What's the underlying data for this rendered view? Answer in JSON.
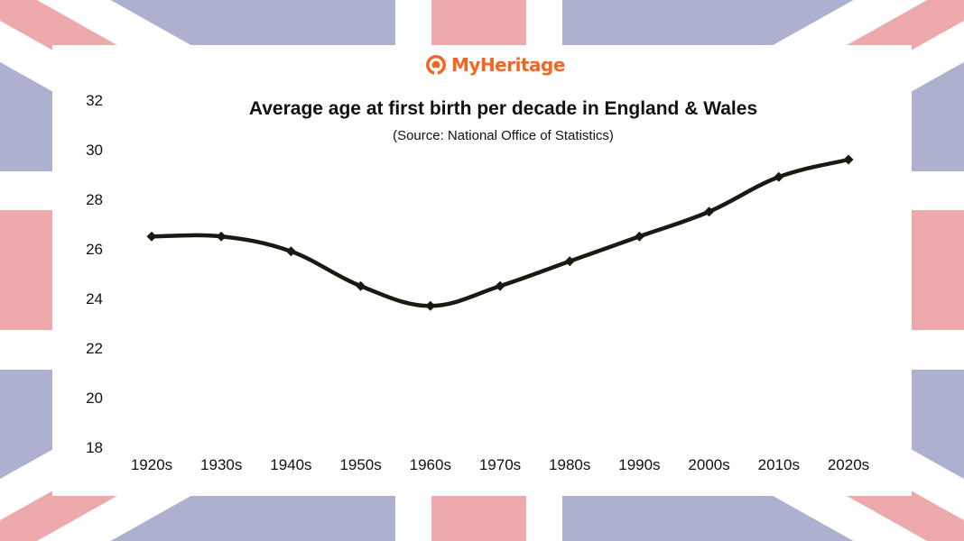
{
  "brand": {
    "name": "MyHeritage",
    "color": "#f26522"
  },
  "flag": {
    "blue": "#aeb0cf",
    "red": "#eda9ac",
    "white": "#ffffff"
  },
  "chart_data": {
    "type": "line",
    "title": "Average age at first birth per decade in England & Wales",
    "subtitle": "(Source: National Office of Statistics)",
    "categories": [
      "1920s",
      "1930s",
      "1940s",
      "1950s",
      "1960s",
      "1970s",
      "1980s",
      "1990s",
      "2000s",
      "2010s",
      "2020s"
    ],
    "values": [
      26.5,
      26.5,
      25.9,
      24.5,
      23.7,
      24.5,
      25.5,
      26.5,
      27.5,
      28.9,
      29.6
    ],
    "ylim": [
      18,
      32
    ],
    "yticks": [
      18,
      20,
      22,
      24,
      26,
      28,
      30,
      32
    ],
    "grid": false,
    "line_color": "#1a1a12"
  }
}
